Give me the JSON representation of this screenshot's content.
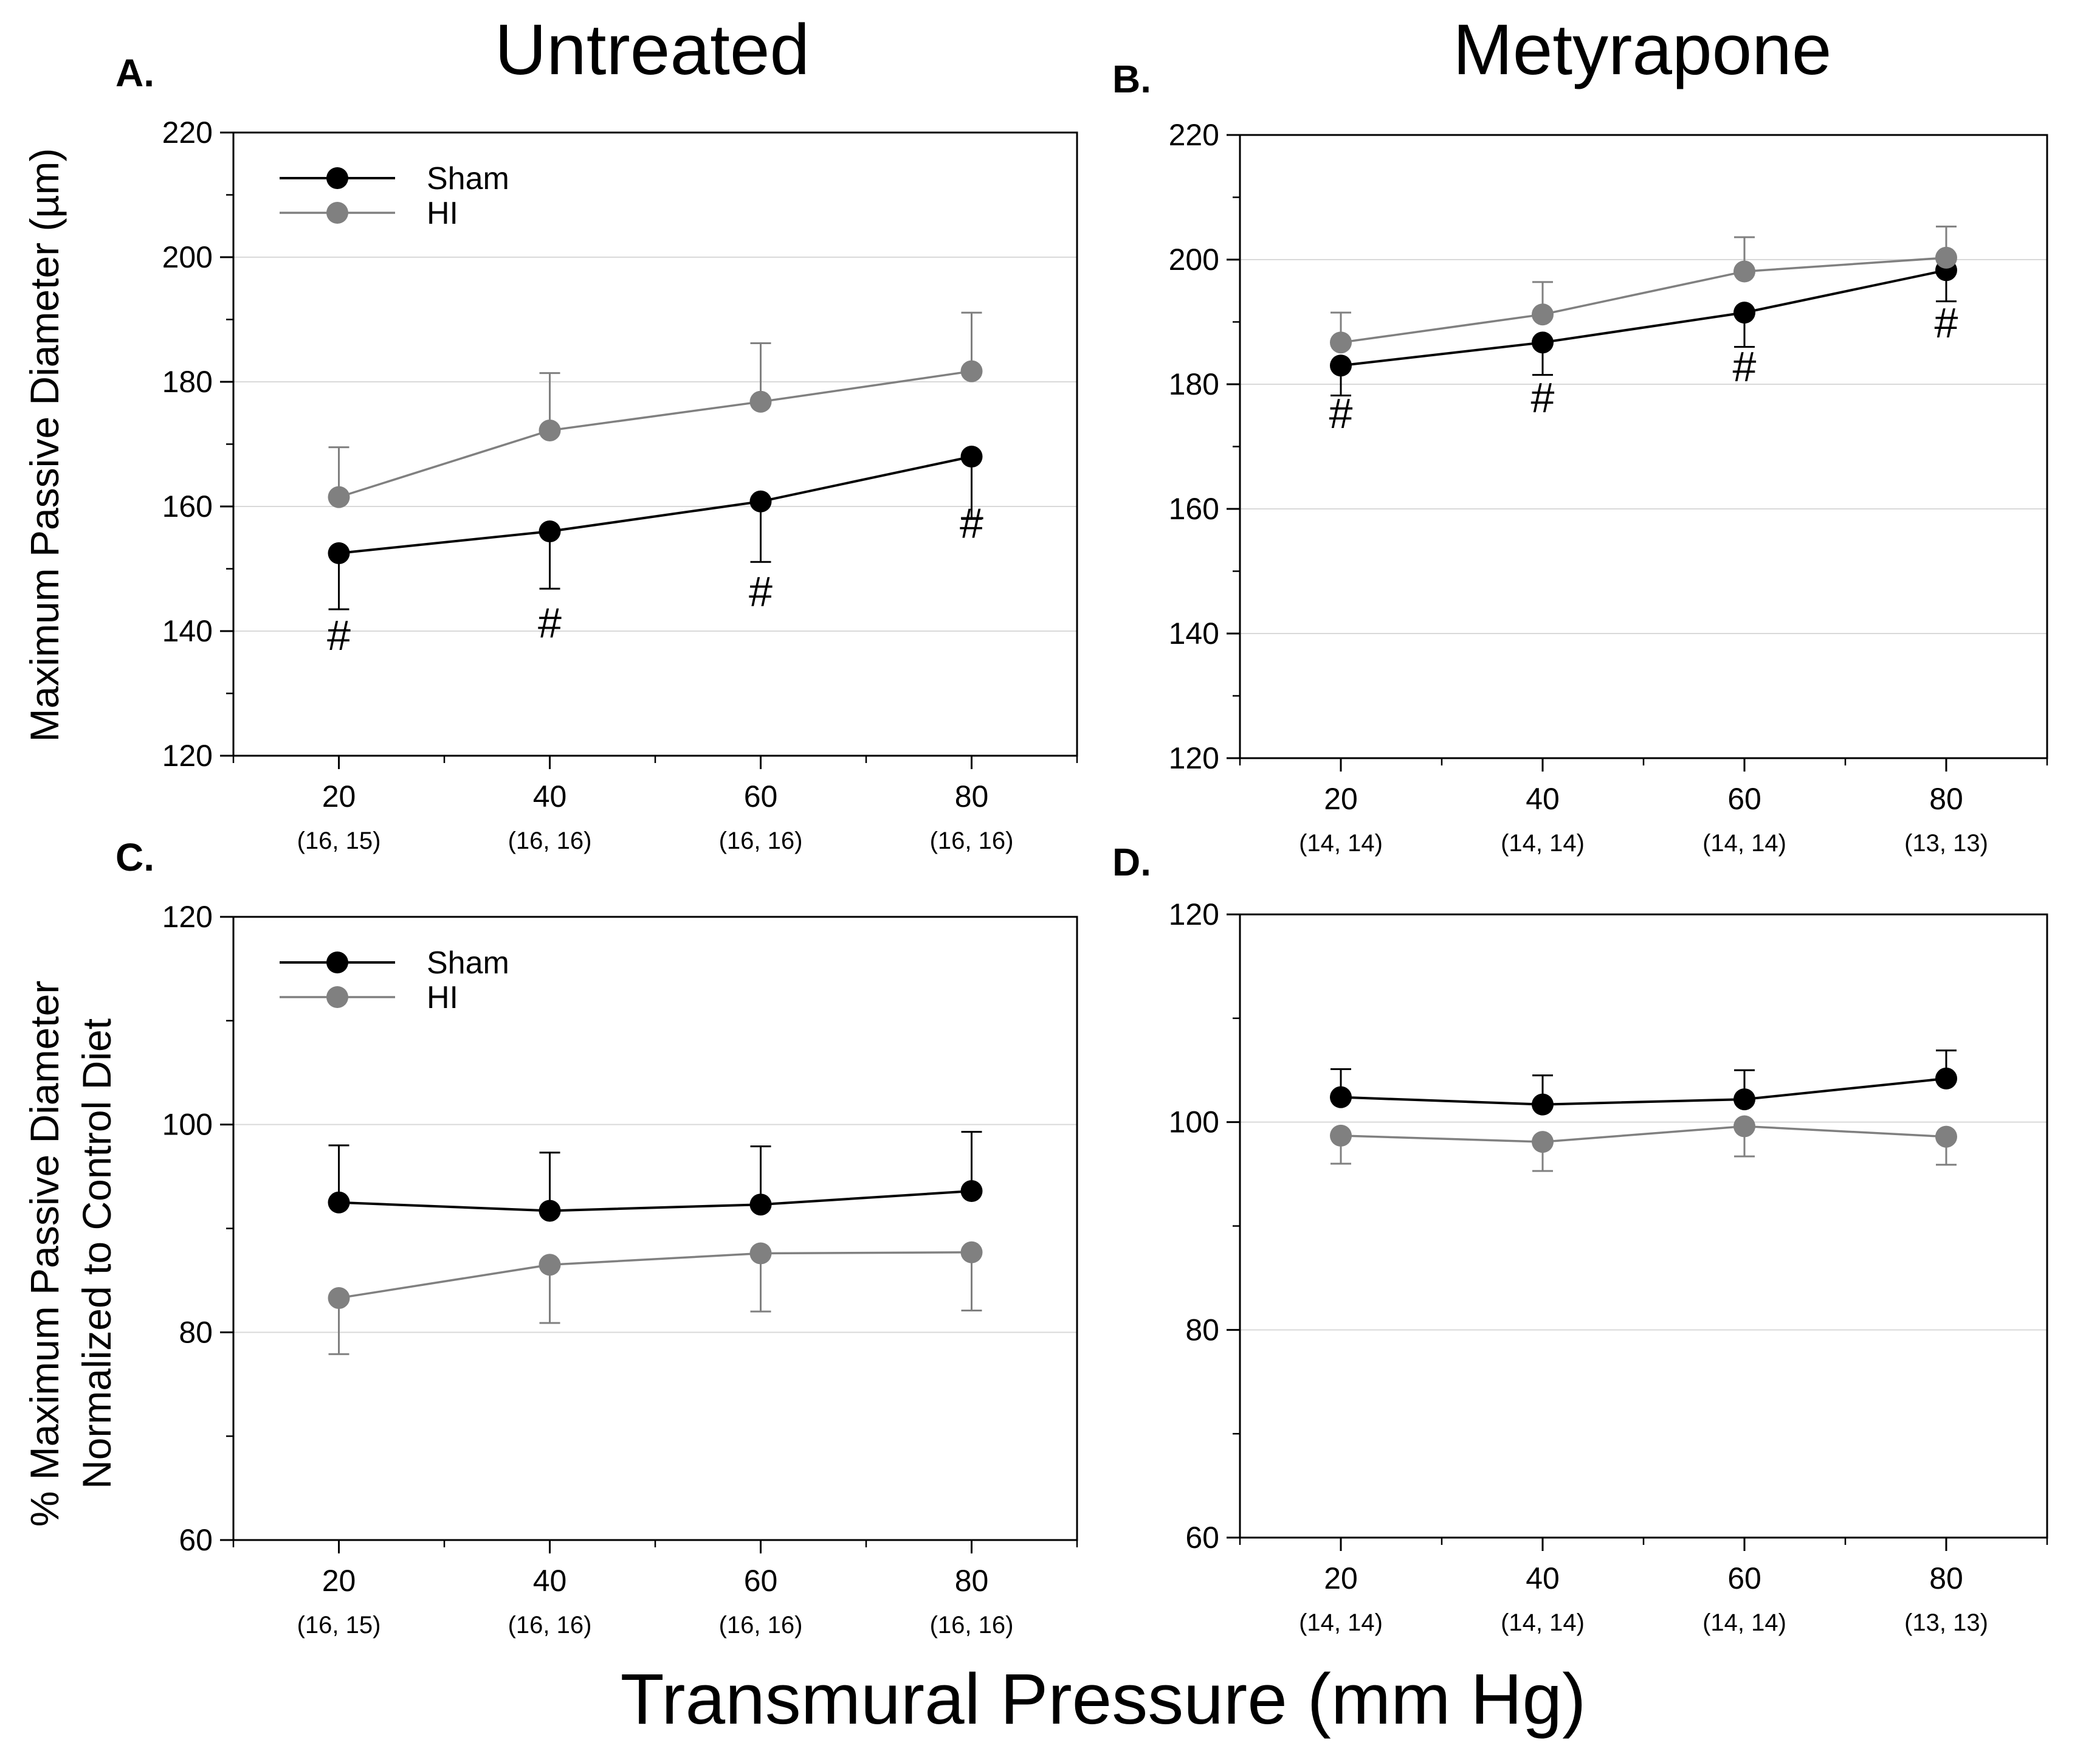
{
  "figure": {
    "column_titles": [
      "Untreated",
      "Metyrapone"
    ],
    "xlabel": "Transmural Pressure (mm Hg)",
    "ylabel_top": "Maximum Passive Diameter (µm)",
    "ylabel_bottom_line1": "% Maximum Passive Diameter",
    "ylabel_bottom_line2": "Normalized to Control  Diet"
  },
  "colors": {
    "sham": "#000000",
    "hi": "#808080",
    "grid": "#d9d9d9"
  },
  "chart_data": [
    {
      "panel": "A.",
      "type": "line",
      "title": "Untreated",
      "x": [
        20,
        40,
        60,
        80
      ],
      "n_labels": [
        "(16, 15)",
        "(16, 16)",
        "(16, 16)",
        "(16, 16)"
      ],
      "xlim": [
        10,
        90
      ],
      "ylim": [
        120,
        220
      ],
      "yticks": [
        120,
        140,
        160,
        180,
        200,
        220
      ],
      "grid": true,
      "legend": "top-left",
      "series": [
        {
          "name": "Sham",
          "key": "sham",
          "values": [
            152.5,
            156,
            160.8,
            168
          ],
          "errors": [
            9,
            9.2,
            9.7,
            10
          ],
          "err_dir": "down"
        },
        {
          "name": "HI",
          "key": "hi",
          "values": [
            161.5,
            172.2,
            176.8,
            181.7
          ],
          "errors": [
            8,
            9.2,
            9.4,
            9.4
          ],
          "err_dir": "up"
        }
      ],
      "annotations": [
        {
          "text": "#",
          "x": 20,
          "y": 137
        },
        {
          "text": "#",
          "x": 40,
          "y": 139
        },
        {
          "text": "#",
          "x": 60,
          "y": 144
        },
        {
          "text": "#",
          "x": 80,
          "y": 155
        }
      ]
    },
    {
      "panel": "B.",
      "type": "line",
      "title": "Metyrapone",
      "x": [
        20,
        40,
        60,
        80
      ],
      "n_labels": [
        "(14, 14)",
        "(14, 14)",
        "(14, 14)",
        "(13, 13)"
      ],
      "xlim": [
        10,
        90
      ],
      "ylim": [
        120,
        220
      ],
      "yticks": [
        120,
        140,
        160,
        180,
        200,
        220
      ],
      "grid": true,
      "legend": "",
      "series": [
        {
          "name": "Sham",
          "key": "sham",
          "values": [
            183,
            186.7,
            191.5,
            198.3
          ],
          "errors": [
            4.8,
            5.2,
            5.5,
            5
          ],
          "err_dir": "down"
        },
        {
          "name": "HI",
          "key": "hi",
          "values": [
            186.7,
            191.2,
            198.1,
            200.3
          ],
          "errors": [
            4.8,
            5.2,
            5.5,
            5
          ],
          "err_dir": "up"
        }
      ],
      "annotations": [
        {
          "text": "#",
          "x": 20,
          "y": 173
        },
        {
          "text": "#",
          "x": 40,
          "y": 175.5
        },
        {
          "text": "#",
          "x": 60,
          "y": 180.5
        },
        {
          "text": "#",
          "x": 80,
          "y": 187.5
        }
      ]
    },
    {
      "panel": "C.",
      "type": "line",
      "title": "",
      "x": [
        20,
        40,
        60,
        80
      ],
      "n_labels": [
        "(16, 15)",
        "(16, 16)",
        "(16, 16)",
        "(16, 16)"
      ],
      "xlim": [
        10,
        90
      ],
      "ylim": [
        60,
        120
      ],
      "yticks": [
        60,
        80,
        100,
        120
      ],
      "grid": true,
      "legend": "top-left",
      "series": [
        {
          "name": "Sham",
          "key": "sham",
          "values": [
            92.5,
            91.7,
            92.3,
            93.6
          ],
          "errors": [
            5.5,
            5.6,
            5.6,
            5.7
          ],
          "err_dir": "up"
        },
        {
          "name": "HI",
          "key": "hi",
          "values": [
            83.3,
            86.5,
            87.6,
            87.7
          ],
          "errors": [
            5.4,
            5.6,
            5.6,
            5.6
          ],
          "err_dir": "down"
        }
      ],
      "annotations": []
    },
    {
      "panel": "D.",
      "type": "line",
      "title": "",
      "x": [
        20,
        40,
        60,
        80
      ],
      "n_labels": [
        "(14, 14)",
        "(14, 14)",
        "(14, 14)",
        "(13, 13)"
      ],
      "xlim": [
        10,
        90
      ],
      "ylim": [
        60,
        120
      ],
      "yticks": [
        60,
        80,
        100,
        120
      ],
      "grid": true,
      "legend": "",
      "series": [
        {
          "name": "Sham",
          "key": "sham",
          "values": [
            102.4,
            101.7,
            102.2,
            104.2
          ],
          "errors": [
            2.7,
            2.8,
            2.8,
            2.7
          ],
          "err_dir": "up"
        },
        {
          "name": "HI",
          "key": "hi",
          "values": [
            98.7,
            98.1,
            99.6,
            98.6
          ],
          "errors": [
            2.7,
            2.8,
            2.9,
            2.7
          ],
          "err_dir": "down"
        }
      ],
      "annotations": []
    }
  ]
}
